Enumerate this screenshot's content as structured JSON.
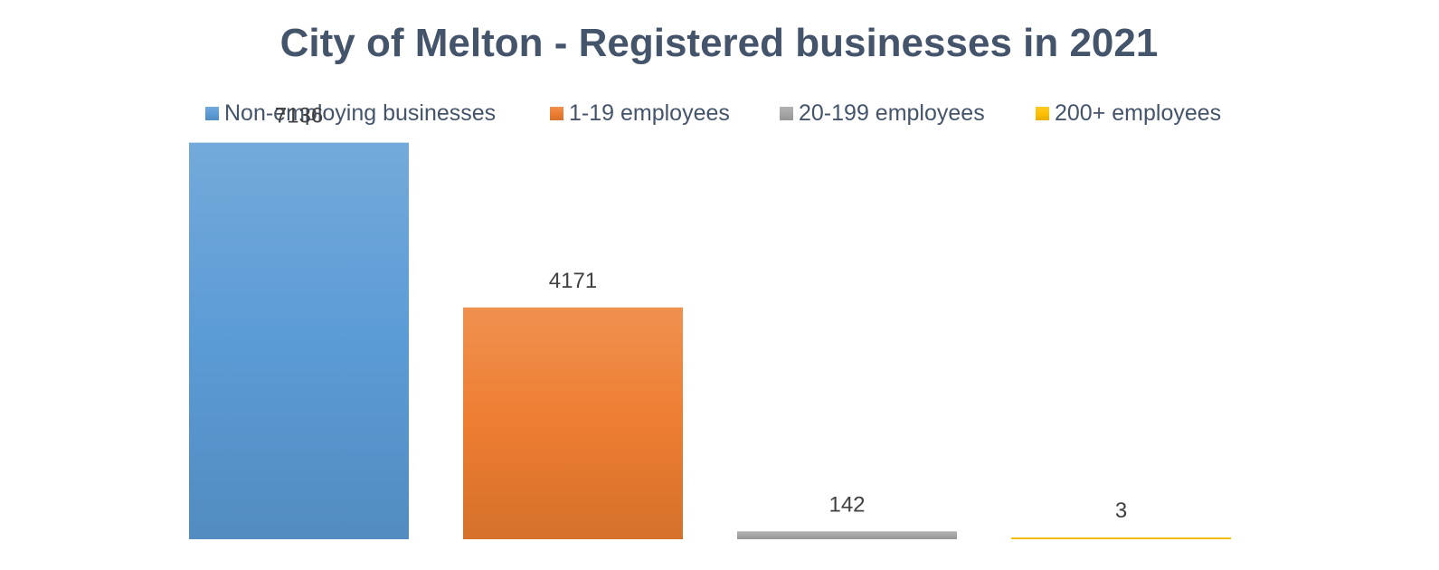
{
  "chart_data": {
    "type": "bar",
    "title": "City of Melton - Registered businesses in 2021",
    "xlabel": "",
    "ylabel": "",
    "ylim": [
      0,
      8400
    ],
    "grid": false,
    "legend_placement": "top-center",
    "series": [
      {
        "name": "Non-employing businesses",
        "value": 7136,
        "label": "7136",
        "color": "#5B9BD5"
      },
      {
        "name": "1-19 employees",
        "value": 4171,
        "label": "4171",
        "color": "#ED7D31"
      },
      {
        "name": "20-199 employees",
        "value": 142,
        "label": "142",
        "color": "#A5A5A5"
      },
      {
        "name": "200+ employees",
        "value": 3,
        "label": "3",
        "color": "#FFC000"
      }
    ]
  },
  "colors": {
    "text": "#44546A",
    "label": "#404040"
  }
}
